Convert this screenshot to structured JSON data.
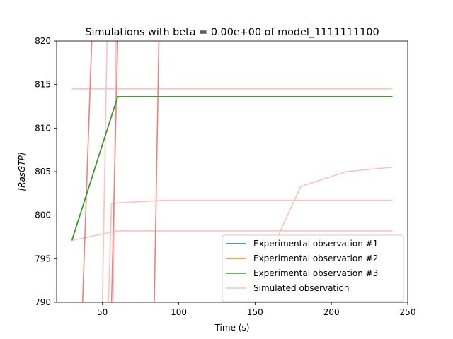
{
  "chart_data": {
    "type": "line",
    "title": "Simulations with beta = 0.00e+00 of model_1111111100",
    "xlabel": "Time (s)",
    "ylabel": "[RasGTP]",
    "xlim": [
      20,
      250
    ],
    "ylim": [
      790,
      820
    ],
    "x_ticks": [
      "50",
      "100",
      "150",
      "200",
      "250"
    ],
    "y_ticks": [
      "790",
      "795",
      "800",
      "805",
      "810",
      "815",
      "820"
    ],
    "grid": false,
    "legend_position": "lower-right",
    "series": [
      {
        "name": "Experimental observation #1",
        "color": "#1f77b4",
        "x": [
          30,
          60,
          240
        ],
        "y": [
          797.1,
          813.6,
          813.6
        ]
      },
      {
        "name": "Experimental observation #2",
        "color": "#ff7f0e",
        "x": [
          30,
          60,
          240
        ],
        "y": [
          797.1,
          813.6,
          813.6
        ]
      },
      {
        "name": "Experimental observation #3",
        "color": "#2ca02c",
        "x": [
          30,
          60,
          240
        ],
        "y": [
          797.1,
          813.6,
          813.6
        ]
      },
      {
        "name": "Simulated observation",
        "color": "#ffc0c0",
        "x": [
          30,
          240
        ],
        "y": [
          814.5,
          814.5
        ]
      },
      {
        "color": "#ffc0c0",
        "x": [
          30,
          60,
          240
        ],
        "y": [
          797.1,
          798.2,
          798.2
        ]
      },
      {
        "color": "#ffc0c0",
        "x": [
          54,
          56,
          60,
          90,
          240
        ],
        "y": [
          790,
          801.3,
          801.4,
          801.7,
          801.7
        ]
      },
      {
        "color": "#ffc0c0",
        "x": [
          145,
          180,
          210,
          240
        ],
        "y": [
          790,
          803.3,
          805,
          805.5
        ]
      },
      {
        "color": "#ffc0c0",
        "x": [
          50,
          53
        ],
        "y": [
          790,
          820
        ]
      },
      {
        "color": "#ffc0c0",
        "x": [
          57,
          59
        ],
        "y": [
          790,
          820
        ]
      },
      {
        "color": "#f08080",
        "x": [
          37,
          43
        ],
        "y": [
          790,
          820
        ]
      },
      {
        "color": "#f08080",
        "x": [
          56,
          60
        ],
        "y": [
          790,
          820
        ]
      },
      {
        "color": "#f08080",
        "x": [
          84,
          87
        ],
        "y": [
          790,
          820
        ]
      }
    ]
  }
}
